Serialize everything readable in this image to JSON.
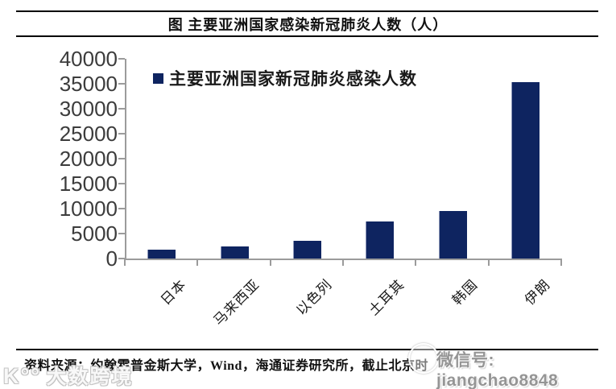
{
  "header": {
    "title": "图 主要亚洲国家感染新冠肺炎人数（人）"
  },
  "chart_data": {
    "type": "bar",
    "title": "图 主要亚洲国家感染新冠肺炎人数（人）",
    "legend": {
      "label": "主要亚洲国家新冠肺炎感染人数",
      "position": "top-left-inside",
      "marker_color": "#0e2460"
    },
    "categories": [
      "日本",
      "马来西亚",
      "以色列",
      "土耳其",
      "韩国",
      "伊朗"
    ],
    "values": [
      1700,
      2400,
      3600,
      7400,
      9500,
      35400
    ],
    "ylim": [
      0,
      40000
    ],
    "ytick_step": 5000,
    "yticks": [
      0,
      5000,
      10000,
      15000,
      20000,
      25000,
      30000,
      35000,
      40000
    ],
    "xlabel": "",
    "ylabel": "",
    "grid": false,
    "bar_color": "#0e2460",
    "axis_color": "#9b9b9b"
  },
  "footer": {
    "source": "资料来源：约翰霍普金斯大学，Wind，海通证券研究所，截止北京时",
    "watermarks": {
      "wechat": "微信号: jiangchao8848",
      "brand_logo": "K°°",
      "brand_name": "大数跨境"
    }
  },
  "colors": {
    "bar": "#0e2460",
    "axis": "#9b9b9b",
    "text": "#1a1a1a",
    "ytick_text": "#3c3c3c",
    "watermark_gray": "#8f8f8f"
  }
}
